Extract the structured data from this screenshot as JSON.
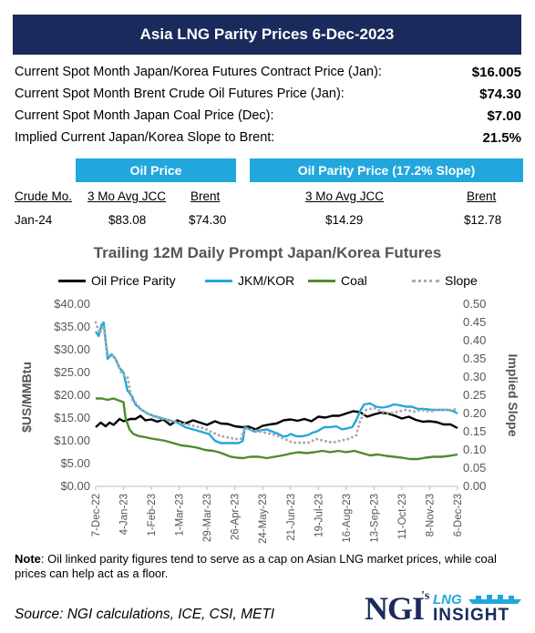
{
  "header": {
    "title": "Asia LNG Parity Prices 6-Dec-2023"
  },
  "summary": [
    {
      "label": "Current Spot Month Japan/Korea Futures Contract Price (Jan):",
      "value": "$16.005"
    },
    {
      "label": "Current Spot Month Brent Crude Oil Futures Price (Jan):",
      "value": "$74.30"
    },
    {
      "label": "Current Spot Month Japan Coal Price (Dec):",
      "value": "$7.00"
    },
    {
      "label": "Implied Current Japan/Korea Slope to Brent:",
      "value": "21.5%"
    }
  ],
  "table": {
    "oil_price_header": "Oil Price",
    "parity_header": "Oil Parity Price (17.2% Slope)",
    "columns": [
      "Crude Mo.",
      "3 Mo Avg JCC",
      "Brent",
      "3 Mo Avg JCC",
      "Brent"
    ],
    "row": [
      "Jan-24",
      "$83.08",
      "$74.30",
      "$14.29",
      "$12.78"
    ]
  },
  "colors": {
    "header_bg": "#1b2a5c",
    "accent": "#21a7dd",
    "parity": "#000000",
    "jkm": "#21a7dd",
    "coal": "#4e8a2e",
    "slope": "#aaaaaa"
  },
  "chart_data": {
    "type": "line",
    "title": "Trailing 12M Daily Prompt Japan/Korea Futures",
    "ylabel": "$US/MMBtu",
    "y2label": "Implied Slope",
    "ylim": [
      0,
      40
    ],
    "y2lim": [
      0,
      0.5
    ],
    "yticks": [
      "$0.00",
      "$5.00",
      "$10.00",
      "$15.00",
      "$20.00",
      "$25.00",
      "$30.00",
      "$35.00",
      "$40.00"
    ],
    "y2ticks": [
      "0.00",
      "0.05",
      "0.10",
      "0.15",
      "0.20",
      "0.25",
      "0.30",
      "0.35",
      "0.40",
      "0.45",
      "0.50"
    ],
    "x_ticks": [
      "7-Dec-22",
      "4-Jan-23",
      "1-Feb-23",
      "1-Mar-23",
      "29-Mar-23",
      "26-Apr-23",
      "24-May-23",
      "21-Jun-23",
      "19-Jul-23",
      "16-Aug-23",
      "13-Sep-23",
      "11-Oct-23",
      "8-Nov-23",
      "6-Dec-23"
    ],
    "grid": false,
    "legend_position": "top",
    "x_span_days": 364,
    "series": [
      {
        "name": "Oil Price Parity",
        "axis": "left",
        "color": "#000000",
        "points": [
          [
            0,
            13
          ],
          [
            5,
            14
          ],
          [
            10,
            13.2
          ],
          [
            14,
            14
          ],
          [
            18,
            13.5
          ],
          [
            24,
            14.8
          ],
          [
            28,
            14.3
          ],
          [
            35,
            14.8
          ],
          [
            40,
            14.8
          ],
          [
            45,
            15.5
          ],
          [
            50,
            14.5
          ],
          [
            56,
            14.7
          ],
          [
            62,
            14.2
          ],
          [
            68,
            14.7
          ],
          [
            75,
            13.5
          ],
          [
            82,
            14.5
          ],
          [
            90,
            13.8
          ],
          [
            98,
            14.5
          ],
          [
            105,
            14
          ],
          [
            112,
            13.5
          ],
          [
            120,
            14.3
          ],
          [
            126,
            13.8
          ],
          [
            133,
            13.7
          ],
          [
            140,
            13.2
          ],
          [
            147,
            13
          ],
          [
            154,
            13.1
          ],
          [
            161,
            12.5
          ],
          [
            168,
            13.3
          ],
          [
            175,
            13.6
          ],
          [
            182,
            13.8
          ],
          [
            189,
            14.5
          ],
          [
            196,
            14.7
          ],
          [
            203,
            14.4
          ],
          [
            210,
            14.8
          ],
          [
            217,
            14.3
          ],
          [
            224,
            15.3
          ],
          [
            231,
            15.1
          ],
          [
            238,
            15.5
          ],
          [
            245,
            15.5
          ],
          [
            252,
            16
          ],
          [
            259,
            16.5
          ],
          [
            266,
            16.3
          ],
          [
            273,
            15.3
          ],
          [
            280,
            15.8
          ],
          [
            287,
            16.2
          ],
          [
            294,
            16
          ],
          [
            301,
            15.5
          ],
          [
            308,
            14.9
          ],
          [
            315,
            15.3
          ],
          [
            322,
            14.6
          ],
          [
            329,
            14.2
          ],
          [
            336,
            14.3
          ],
          [
            343,
            14.1
          ],
          [
            350,
            13.6
          ],
          [
            357,
            13.6
          ],
          [
            364,
            12.8
          ]
        ]
      },
      {
        "name": "JKM/KOR",
        "axis": "left",
        "color": "#21a7dd",
        "points": [
          [
            0,
            34
          ],
          [
            3,
            33
          ],
          [
            6,
            35.5
          ],
          [
            8,
            36
          ],
          [
            10,
            32
          ],
          [
            12,
            28
          ],
          [
            16,
            29
          ],
          [
            20,
            28
          ],
          [
            24,
            26
          ],
          [
            28,
            25
          ],
          [
            32,
            21
          ],
          [
            36,
            20
          ],
          [
            40,
            18
          ],
          [
            45,
            17
          ],
          [
            52,
            16
          ],
          [
            58,
            15.5
          ],
          [
            66,
            15
          ],
          [
            74,
            14.5
          ],
          [
            82,
            14
          ],
          [
            90,
            13
          ],
          [
            98,
            12.5
          ],
          [
            106,
            12
          ],
          [
            114,
            11.5
          ],
          [
            120,
            10
          ],
          [
            126,
            9.5
          ],
          [
            132,
            9.5
          ],
          [
            138,
            9.5
          ],
          [
            144,
            9.5
          ],
          [
            148,
            10
          ],
          [
            150,
            13
          ],
          [
            155,
            12.5
          ],
          [
            160,
            12
          ],
          [
            166,
            12.3
          ],
          [
            172,
            12.5
          ],
          [
            178,
            12
          ],
          [
            184,
            11.5
          ],
          [
            188,
            11
          ],
          [
            192,
            11
          ],
          [
            196,
            11.5
          ],
          [
            202,
            11
          ],
          [
            208,
            11
          ],
          [
            214,
            11.3
          ],
          [
            218,
            11.8
          ],
          [
            222,
            12
          ],
          [
            226,
            12.5
          ],
          [
            230,
            13
          ],
          [
            236,
            13
          ],
          [
            242,
            13.2
          ],
          [
            248,
            12.5
          ],
          [
            254,
            12.8
          ],
          [
            258,
            13
          ],
          [
            262,
            14.5
          ],
          [
            266,
            16.5
          ],
          [
            270,
            18
          ],
          [
            276,
            18.2
          ],
          [
            282,
            17.5
          ],
          [
            288,
            17.3
          ],
          [
            294,
            17.5
          ],
          [
            300,
            18
          ],
          [
            306,
            17.8
          ],
          [
            312,
            17.5
          ],
          [
            318,
            17.5
          ],
          [
            324,
            17
          ],
          [
            330,
            17
          ],
          [
            338,
            16.8
          ],
          [
            346,
            16.8
          ],
          [
            354,
            16.8
          ],
          [
            360,
            16.5
          ],
          [
            364,
            16
          ]
        ]
      },
      {
        "name": "Coal",
        "axis": "left",
        "color": "#4e8a2e",
        "points": [
          [
            0,
            19.3
          ],
          [
            6,
            19.3
          ],
          [
            12,
            19
          ],
          [
            18,
            19.3
          ],
          [
            24,
            18.8
          ],
          [
            28,
            18.5
          ],
          [
            30,
            15
          ],
          [
            34,
            12.5
          ],
          [
            38,
            11.5
          ],
          [
            44,
            11
          ],
          [
            50,
            10.8
          ],
          [
            56,
            10.5
          ],
          [
            62,
            10.3
          ],
          [
            70,
            10
          ],
          [
            78,
            9.5
          ],
          [
            86,
            9
          ],
          [
            94,
            8.8
          ],
          [
            102,
            8.5
          ],
          [
            110,
            8
          ],
          [
            118,
            7.8
          ],
          [
            124,
            7.5
          ],
          [
            130,
            7
          ],
          [
            136,
            6.5
          ],
          [
            142,
            6.3
          ],
          [
            148,
            6.2
          ],
          [
            156,
            6.5
          ],
          [
            164,
            6.5
          ],
          [
            172,
            6.2
          ],
          [
            180,
            6.5
          ],
          [
            188,
            6.8
          ],
          [
            196,
            7.2
          ],
          [
            204,
            7.5
          ],
          [
            212,
            7.3
          ],
          [
            220,
            7.5
          ],
          [
            228,
            7.8
          ],
          [
            236,
            7.5
          ],
          [
            244,
            7.8
          ],
          [
            252,
            7.5
          ],
          [
            260,
            7.8
          ],
          [
            268,
            7.3
          ],
          [
            276,
            6.8
          ],
          [
            284,
            7
          ],
          [
            292,
            6.7
          ],
          [
            300,
            6.5
          ],
          [
            308,
            6.3
          ],
          [
            316,
            6
          ],
          [
            324,
            6
          ],
          [
            332,
            6.3
          ],
          [
            340,
            6.5
          ],
          [
            348,
            6.5
          ],
          [
            356,
            6.7
          ],
          [
            364,
            7
          ]
        ]
      },
      {
        "name": "Slope",
        "axis": "right",
        "color": "#aaaaaa",
        "points": [
          [
            0,
            0.45
          ],
          [
            4,
            0.42
          ],
          [
            8,
            0.44
          ],
          [
            12,
            0.36
          ],
          [
            16,
            0.36
          ],
          [
            20,
            0.35
          ],
          [
            26,
            0.31
          ],
          [
            32,
            0.3
          ],
          [
            36,
            0.24
          ],
          [
            40,
            0.23
          ],
          [
            46,
            0.21
          ],
          [
            52,
            0.2
          ],
          [
            60,
            0.19
          ],
          [
            68,
            0.185
          ],
          [
            76,
            0.18
          ],
          [
            84,
            0.175
          ],
          [
            92,
            0.17
          ],
          [
            100,
            0.165
          ],
          [
            108,
            0.16
          ],
          [
            116,
            0.15
          ],
          [
            124,
            0.14
          ],
          [
            132,
            0.135
          ],
          [
            140,
            0.13
          ],
          [
            146,
            0.13
          ],
          [
            150,
            0.16
          ],
          [
            158,
            0.155
          ],
          [
            166,
            0.15
          ],
          [
            174,
            0.145
          ],
          [
            182,
            0.14
          ],
          [
            190,
            0.13
          ],
          [
            198,
            0.12
          ],
          [
            206,
            0.12
          ],
          [
            214,
            0.12
          ],
          [
            222,
            0.13
          ],
          [
            230,
            0.125
          ],
          [
            238,
            0.12
          ],
          [
            246,
            0.125
          ],
          [
            254,
            0.13
          ],
          [
            262,
            0.14
          ],
          [
            266,
            0.18
          ],
          [
            272,
            0.21
          ],
          [
            280,
            0.215
          ],
          [
            288,
            0.205
          ],
          [
            296,
            0.2
          ],
          [
            304,
            0.205
          ],
          [
            312,
            0.21
          ],
          [
            320,
            0.205
          ],
          [
            328,
            0.21
          ],
          [
            336,
            0.205
          ],
          [
            344,
            0.21
          ],
          [
            352,
            0.21
          ],
          [
            360,
            0.21
          ],
          [
            364,
            0.215
          ]
        ]
      }
    ]
  },
  "note": {
    "label": "Note",
    "text": ": Oil linked parity figures tend to serve as a cap on Asian LNG market prices, while coal prices can help act as a floor."
  },
  "source": "Source: NGI calculations, ICE, CSI, METI",
  "logo": {
    "ngi": "NGI",
    "apos": "'s",
    "lng": "LNG",
    "insight": "INSIGHT"
  }
}
